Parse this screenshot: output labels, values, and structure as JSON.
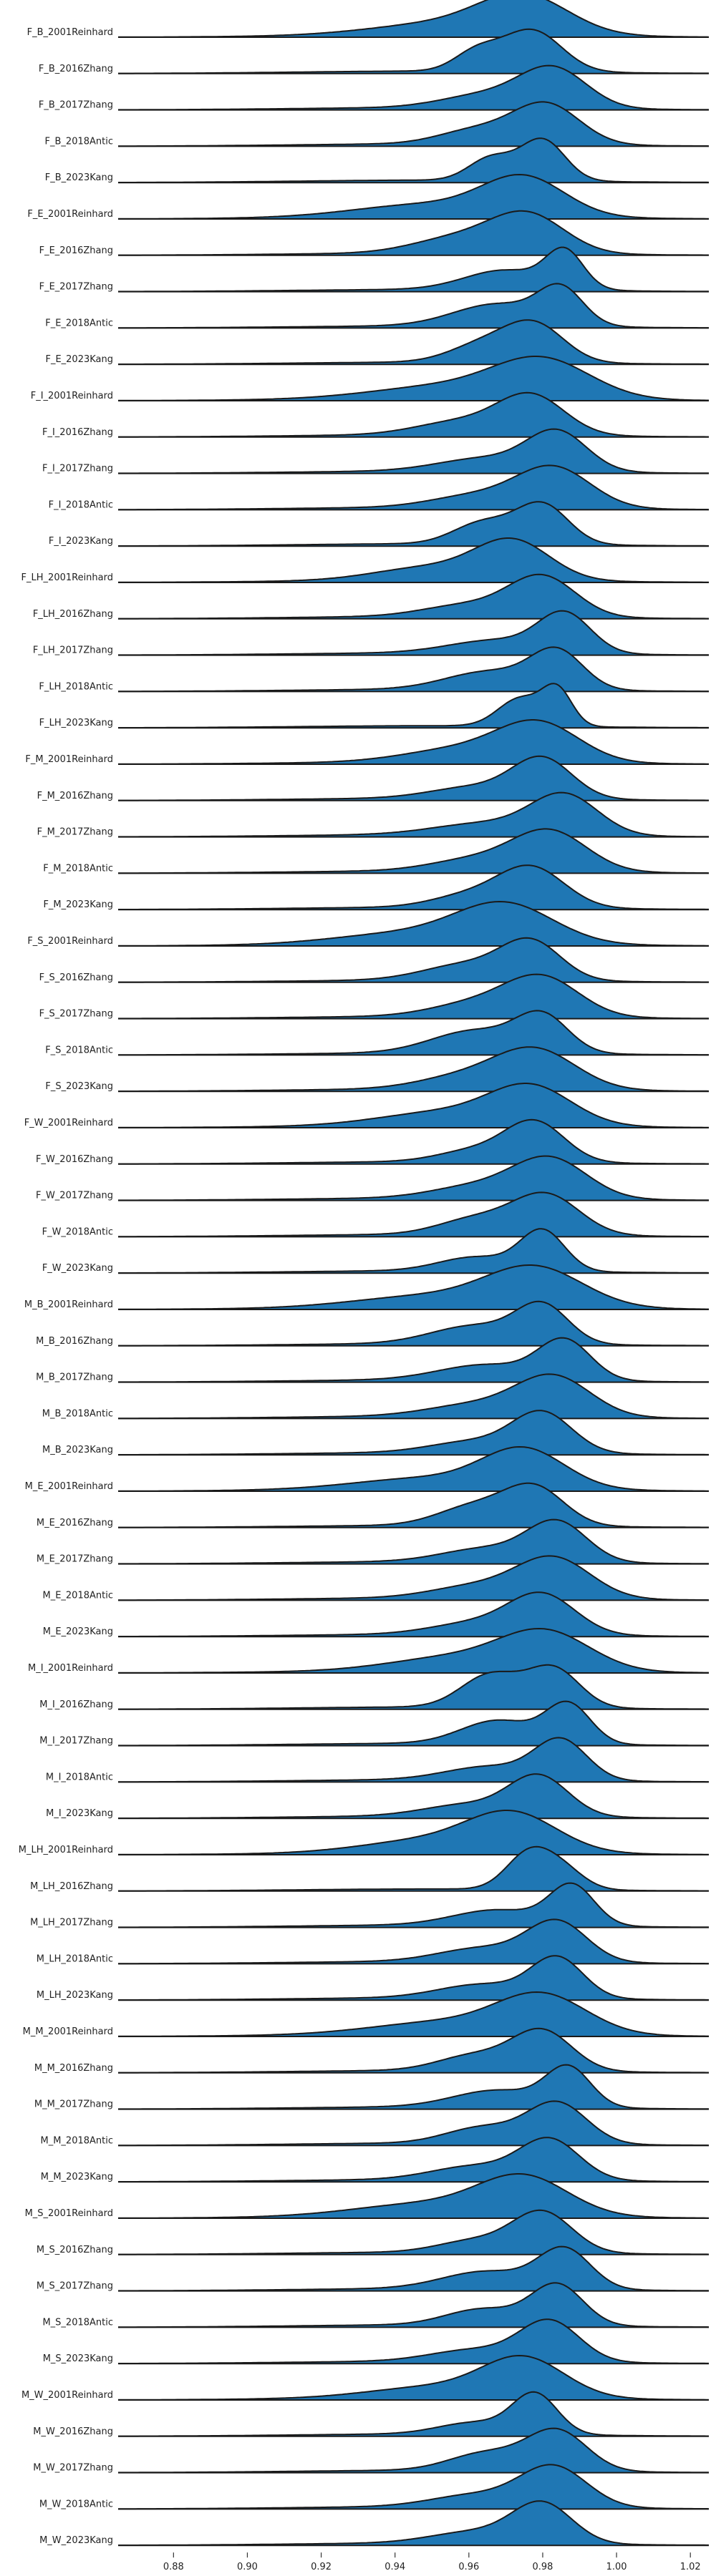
{
  "chart_data": {
    "type": "ridgeline",
    "title": "",
    "xlabel": "",
    "ylabel": "",
    "xlim": [
      0.865,
      1.025
    ],
    "x_ticks": [
      0.88,
      0.9,
      0.92,
      0.94,
      0.96,
      0.98,
      1.0,
      1.02
    ],
    "x_tick_labels": [
      "0.88",
      "0.90",
      "0.92",
      "0.94",
      "0.96",
      "0.98",
      "1.00",
      "1.02"
    ],
    "grid": false,
    "legend": "none",
    "fill_color": "#1f77b4",
    "line_color": "#1a1a1a",
    "series": [
      {
        "label": "F_B_2001Reinhard",
        "peaks": [
          [
            0.975,
            0.012,
            1.0
          ],
          [
            0.955,
            0.02,
            0.35
          ]
        ]
      },
      {
        "label": "F_B_2016Zhang",
        "peaks": [
          [
            0.977,
            0.008,
            1.0
          ],
          [
            0.962,
            0.006,
            0.45
          ]
        ]
      },
      {
        "label": "F_B_2017Zhang",
        "peaks": [
          [
            0.983,
            0.009,
            1.0
          ],
          [
            0.965,
            0.012,
            0.35
          ]
        ]
      },
      {
        "label": "F_B_2018Antic",
        "peaks": [
          [
            0.981,
            0.009,
            1.0
          ],
          [
            0.962,
            0.01,
            0.35
          ]
        ]
      },
      {
        "label": "F_B_2023Kang",
        "peaks": [
          [
            0.98,
            0.006,
            1.0
          ],
          [
            0.966,
            0.006,
            0.55
          ]
        ]
      },
      {
        "label": "F_E_2001Reinhard",
        "peaks": [
          [
            0.975,
            0.011,
            1.0
          ],
          [
            0.95,
            0.02,
            0.35
          ]
        ]
      },
      {
        "label": "F_E_2016Zhang",
        "peaks": [
          [
            0.976,
            0.01,
            1.0
          ],
          [
            0.957,
            0.012,
            0.4
          ]
        ]
      },
      {
        "label": "F_E_2017Zhang",
        "peaks": [
          [
            0.986,
            0.005,
            1.0
          ],
          [
            0.97,
            0.011,
            0.55
          ]
        ]
      },
      {
        "label": "F_E_2018Antic",
        "peaks": [
          [
            0.985,
            0.006,
            1.0
          ],
          [
            0.968,
            0.012,
            0.65
          ]
        ]
      },
      {
        "label": "F_E_2023Kang",
        "peaks": [
          [
            0.978,
            0.008,
            1.0
          ],
          [
            0.964,
            0.009,
            0.5
          ]
        ]
      },
      {
        "label": "F_I_2001Reinhard",
        "peaks": [
          [
            0.98,
            0.013,
            1.0
          ],
          [
            0.955,
            0.02,
            0.35
          ]
        ]
      },
      {
        "label": "F_I_2016Zhang",
        "peaks": [
          [
            0.977,
            0.009,
            1.0
          ],
          [
            0.958,
            0.012,
            0.35
          ]
        ]
      },
      {
        "label": "F_I_2017Zhang",
        "peaks": [
          [
            0.984,
            0.008,
            1.0
          ],
          [
            0.965,
            0.013,
            0.35
          ]
        ]
      },
      {
        "label": "F_I_2018Antic",
        "peaks": [
          [
            0.983,
            0.01,
            1.0
          ],
          [
            0.962,
            0.012,
            0.3
          ]
        ]
      },
      {
        "label": "F_I_2023Kang",
        "peaks": [
          [
            0.98,
            0.007,
            1.0
          ],
          [
            0.964,
            0.008,
            0.55
          ]
        ]
      },
      {
        "label": "F_LH_2001Reinhard",
        "peaks": [
          [
            0.972,
            0.01,
            1.0
          ],
          [
            0.95,
            0.015,
            0.35
          ]
        ]
      },
      {
        "label": "F_LH_2016Zhang",
        "peaks": [
          [
            0.98,
            0.009,
            1.0
          ],
          [
            0.96,
            0.012,
            0.3
          ]
        ]
      },
      {
        "label": "F_LH_2017Zhang",
        "peaks": [
          [
            0.986,
            0.007,
            1.0
          ],
          [
            0.968,
            0.013,
            0.35
          ]
        ]
      },
      {
        "label": "F_LH_2018Antic",
        "peaks": [
          [
            0.984,
            0.007,
            1.0
          ],
          [
            0.966,
            0.012,
            0.5
          ]
        ]
      },
      {
        "label": "F_LH_2023Kang",
        "peaks": [
          [
            0.984,
            0.004,
            1.0
          ],
          [
            0.974,
            0.006,
            0.8
          ]
        ]
      },
      {
        "label": "F_M_2001Reinhard",
        "peaks": [
          [
            0.979,
            0.011,
            1.0
          ],
          [
            0.958,
            0.015,
            0.35
          ]
        ]
      },
      {
        "label": "F_M_2016Zhang",
        "peaks": [
          [
            0.98,
            0.008,
            1.0
          ],
          [
            0.962,
            0.012,
            0.3
          ]
        ]
      },
      {
        "label": "F_M_2017Zhang",
        "peaks": [
          [
            0.986,
            0.009,
            1.0
          ],
          [
            0.965,
            0.014,
            0.3
          ]
        ]
      },
      {
        "label": "F_M_2018Antic",
        "peaks": [
          [
            0.982,
            0.01,
            1.0
          ],
          [
            0.962,
            0.012,
            0.3
          ]
        ]
      },
      {
        "label": "F_M_2023Kang",
        "peaks": [
          [
            0.977,
            0.009,
            1.0
          ],
          [
            0.96,
            0.01,
            0.3
          ]
        ]
      },
      {
        "label": "F_S_2001Reinhard",
        "peaks": [
          [
            0.97,
            0.013,
            1.0
          ],
          [
            0.945,
            0.02,
            0.3
          ]
        ]
      },
      {
        "label": "F_S_2016Zhang",
        "peaks": [
          [
            0.977,
            0.008,
            1.0
          ],
          [
            0.96,
            0.012,
            0.45
          ]
        ]
      },
      {
        "label": "F_S_2017Zhang",
        "peaks": [
          [
            0.98,
            0.01,
            1.0
          ],
          [
            0.962,
            0.012,
            0.35
          ]
        ]
      },
      {
        "label": "F_S_2018Antic",
        "peaks": [
          [
            0.98,
            0.007,
            1.0
          ],
          [
            0.962,
            0.012,
            0.65
          ]
        ]
      },
      {
        "label": "F_S_2023Kang",
        "peaks": [
          [
            0.978,
            0.011,
            1.0
          ],
          [
            0.958,
            0.012,
            0.3
          ]
        ]
      },
      {
        "label": "F_W_2001Reinhard",
        "peaks": [
          [
            0.977,
            0.011,
            1.0
          ],
          [
            0.955,
            0.018,
            0.4
          ]
        ]
      },
      {
        "label": "F_W_2016Zhang",
        "peaks": [
          [
            0.978,
            0.008,
            1.0
          ],
          [
            0.962,
            0.01,
            0.3
          ]
        ]
      },
      {
        "label": "F_W_2017Zhang",
        "peaks": [
          [
            0.982,
            0.01,
            1.0
          ],
          [
            0.962,
            0.012,
            0.3
          ]
        ]
      },
      {
        "label": "F_W_2018Antic",
        "peaks": [
          [
            0.981,
            0.009,
            1.0
          ],
          [
            0.962,
            0.01,
            0.4
          ]
        ]
      },
      {
        "label": "F_W_2023Kang",
        "peaks": [
          [
            0.98,
            0.006,
            1.0
          ],
          [
            0.962,
            0.01,
            0.35
          ]
        ]
      },
      {
        "label": "M_B_2001Reinhard",
        "peaks": [
          [
            0.978,
            0.013,
            1.0
          ],
          [
            0.95,
            0.02,
            0.3
          ]
        ]
      },
      {
        "label": "M_B_2016Zhang",
        "peaks": [
          [
            0.98,
            0.007,
            1.0
          ],
          [
            0.962,
            0.012,
            0.5
          ]
        ]
      },
      {
        "label": "M_B_2017Zhang",
        "peaks": [
          [
            0.986,
            0.007,
            1.0
          ],
          [
            0.965,
            0.013,
            0.4
          ]
        ]
      },
      {
        "label": "M_B_2018Antic",
        "peaks": [
          [
            0.983,
            0.01,
            1.0
          ],
          [
            0.962,
            0.013,
            0.3
          ]
        ]
      },
      {
        "label": "M_B_2023Kang",
        "peaks": [
          [
            0.98,
            0.008,
            1.0
          ],
          [
            0.962,
            0.012,
            0.3
          ]
        ]
      },
      {
        "label": "M_E_2001Reinhard",
        "peaks": [
          [
            0.975,
            0.011,
            1.0
          ],
          [
            0.95,
            0.02,
            0.3
          ]
        ]
      },
      {
        "label": "M_E_2016Zhang",
        "peaks": [
          [
            0.978,
            0.008,
            1.0
          ],
          [
            0.962,
            0.01,
            0.55
          ]
        ]
      },
      {
        "label": "M_E_2017Zhang",
        "peaks": [
          [
            0.984,
            0.008,
            1.0
          ],
          [
            0.965,
            0.012,
            0.35
          ]
        ]
      },
      {
        "label": "M_E_2018Antic",
        "peaks": [
          [
            0.983,
            0.01,
            1.0
          ],
          [
            0.962,
            0.012,
            0.3
          ]
        ]
      },
      {
        "label": "M_E_2023Kang",
        "peaks": [
          [
            0.98,
            0.009,
            1.0
          ],
          [
            0.962,
            0.012,
            0.3
          ]
        ]
      },
      {
        "label": "M_I_2001Reinhard",
        "peaks": [
          [
            0.981,
            0.012,
            1.0
          ],
          [
            0.958,
            0.018,
            0.4
          ]
        ]
      },
      {
        "label": "M_I_2016Zhang",
        "peaks": [
          [
            0.983,
            0.007,
            1.0
          ],
          [
            0.966,
            0.008,
            0.85
          ]
        ]
      },
      {
        "label": "M_I_2017Zhang",
        "peaks": [
          [
            0.987,
            0.006,
            1.0
          ],
          [
            0.968,
            0.01,
            0.6
          ]
        ]
      },
      {
        "label": "M_I_2018Antic",
        "peaks": [
          [
            0.985,
            0.007,
            1.0
          ],
          [
            0.966,
            0.012,
            0.35
          ]
        ]
      },
      {
        "label": "M_I_2023Kang",
        "peaks": [
          [
            0.979,
            0.008,
            1.0
          ],
          [
            0.96,
            0.012,
            0.3
          ]
        ]
      },
      {
        "label": "M_LH_2001Reinhard",
        "peaks": [
          [
            0.972,
            0.012,
            1.0
          ],
          [
            0.95,
            0.018,
            0.35
          ]
        ]
      },
      {
        "label": "M_LH_2016Zhang",
        "peaks": [
          [
            0.976,
            0.006,
            1.0
          ],
          [
            0.985,
            0.006,
            0.6
          ]
        ]
      },
      {
        "label": "M_LH_2017Zhang",
        "peaks": [
          [
            0.988,
            0.006,
            1.0
          ],
          [
            0.968,
            0.012,
            0.4
          ]
        ]
      },
      {
        "label": "M_LH_2018Antic",
        "peaks": [
          [
            0.984,
            0.008,
            1.0
          ],
          [
            0.964,
            0.012,
            0.35
          ]
        ]
      },
      {
        "label": "M_LH_2023Kang",
        "peaks": [
          [
            0.984,
            0.007,
            1.0
          ],
          [
            0.964,
            0.012,
            0.35
          ]
        ]
      },
      {
        "label": "M_M_2001Reinhard",
        "peaks": [
          [
            0.98,
            0.012,
            1.0
          ],
          [
            0.955,
            0.02,
            0.35
          ]
        ]
      },
      {
        "label": "M_M_2016Zhang",
        "peaks": [
          [
            0.98,
            0.008,
            1.0
          ],
          [
            0.962,
            0.01,
            0.4
          ]
        ]
      },
      {
        "label": "M_M_2017Zhang",
        "peaks": [
          [
            0.987,
            0.006,
            1.0
          ],
          [
            0.968,
            0.012,
            0.45
          ]
        ]
      },
      {
        "label": "M_M_2018Antic",
        "peaks": [
          [
            0.984,
            0.008,
            1.0
          ],
          [
            0.964,
            0.01,
            0.4
          ]
        ]
      },
      {
        "label": "M_M_2023Kang",
        "peaks": [
          [
            0.982,
            0.008,
            1.0
          ],
          [
            0.962,
            0.012,
            0.35
          ]
        ]
      },
      {
        "label": "M_S_2001Reinhard",
        "peaks": [
          [
            0.975,
            0.012,
            1.0
          ],
          [
            0.95,
            0.02,
            0.35
          ]
        ]
      },
      {
        "label": "M_S_2016Zhang",
        "peaks": [
          [
            0.98,
            0.008,
            1.0
          ],
          [
            0.962,
            0.01,
            0.3
          ]
        ]
      },
      {
        "label": "M_S_2017Zhang",
        "peaks": [
          [
            0.986,
            0.007,
            1.0
          ],
          [
            0.965,
            0.012,
            0.45
          ]
        ]
      },
      {
        "label": "M_S_2018Antic",
        "peaks": [
          [
            0.984,
            0.007,
            1.0
          ],
          [
            0.964,
            0.01,
            0.4
          ]
        ]
      },
      {
        "label": "M_S_2023Kang",
        "peaks": [
          [
            0.982,
            0.008,
            1.0
          ],
          [
            0.962,
            0.012,
            0.3
          ]
        ]
      },
      {
        "label": "M_W_2001Reinhard",
        "peaks": [
          [
            0.975,
            0.011,
            1.0
          ],
          [
            0.952,
            0.018,
            0.3
          ]
        ]
      },
      {
        "label": "M_W_2016Zhang",
        "peaks": [
          [
            0.978,
            0.006,
            1.0
          ],
          [
            0.962,
            0.01,
            0.3
          ]
        ]
      },
      {
        "label": "M_W_2017Zhang",
        "peaks": [
          [
            0.984,
            0.008,
            1.0
          ],
          [
            0.965,
            0.01,
            0.45
          ]
        ]
      },
      {
        "label": "M_W_2018Antic",
        "peaks": [
          [
            0.983,
            0.009,
            1.0
          ],
          [
            0.962,
            0.012,
            0.3
          ]
        ]
      },
      {
        "label": "M_W_2023Kang",
        "peaks": [
          [
            0.98,
            0.008,
            1.0
          ],
          [
            0.962,
            0.012,
            0.3
          ]
        ]
      }
    ]
  }
}
